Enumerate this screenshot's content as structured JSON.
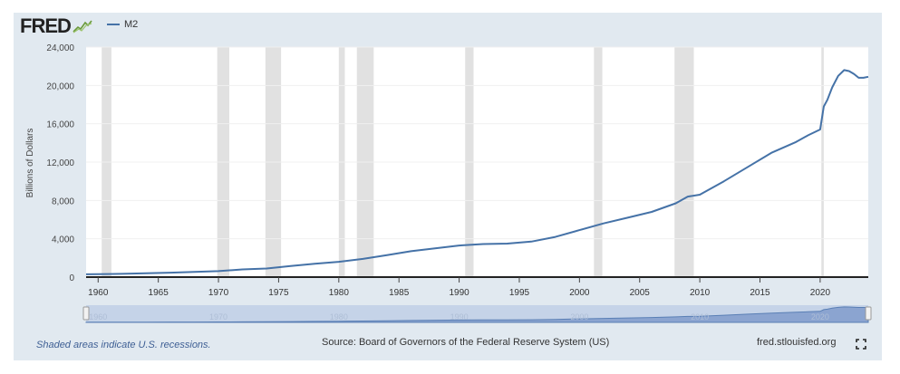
{
  "brand": {
    "name": "FRED"
  },
  "legend": {
    "series_label": "M2"
  },
  "footer": {
    "recession_note": "Shaded areas indicate U.S. recessions.",
    "source": "Source: Board of Governors of the Federal Reserve System (US)",
    "site": "fred.stlouisfed.org"
  },
  "colors": {
    "line": "#4572a7",
    "recession": "#e1e1e1",
    "frame": "#e1e9f0",
    "navigator_fill": "#8ba4d0"
  },
  "navigator_labels": [
    "1960",
    "1970",
    "1980",
    "1990",
    "2000",
    "2010",
    "2020"
  ],
  "chart_data": {
    "type": "line",
    "title": "",
    "ylabel": "Billions of Dollars",
    "xlabel": "",
    "xlim": [
      1959,
      2024
    ],
    "ylim": [
      0,
      24000
    ],
    "yticks": [
      0,
      4000,
      8000,
      12000,
      16000,
      20000,
      24000
    ],
    "ytick_labels": [
      "0",
      "4,000",
      "8,000",
      "12,000",
      "16,000",
      "20,000",
      "24,000"
    ],
    "xticks": [
      1960,
      1965,
      1970,
      1975,
      1980,
      1985,
      1990,
      1995,
      2000,
      2005,
      2010,
      2015,
      2020
    ],
    "xtick_labels": [
      "1960",
      "1965",
      "1970",
      "1975",
      "1980",
      "1985",
      "1990",
      "1995",
      "2000",
      "2005",
      "2010",
      "2015",
      "2020"
    ],
    "recessions": [
      [
        1960.3,
        1961.1
      ],
      [
        1969.9,
        1970.9
      ],
      [
        1973.9,
        1975.2
      ],
      [
        1980.0,
        1980.5
      ],
      [
        1981.5,
        1982.9
      ],
      [
        1990.5,
        1991.2
      ],
      [
        2001.2,
        2001.9
      ],
      [
        2007.9,
        2009.5
      ],
      [
        2020.1,
        2020.3
      ]
    ],
    "series": [
      {
        "name": "M2",
        "x": [
          1959,
          1960,
          1962,
          1964,
          1966,
          1968,
          1970,
          1972,
          1974,
          1976,
          1978,
          1980,
          1982,
          1984,
          1986,
          1988,
          1990,
          1992,
          1994,
          1996,
          1998,
          2000,
          2002,
          2004,
          2006,
          2008,
          2009,
          2010,
          2012,
          2014,
          2016,
          2018,
          2019,
          2020.0,
          2020.3,
          2020.6,
          2021.0,
          2021.5,
          2022.0,
          2022.4,
          2022.8,
          2023.2,
          2023.6,
          2024.0
        ],
        "values": [
          290,
          300,
          340,
          400,
          460,
          550,
          620,
          800,
          900,
          1150,
          1400,
          1600,
          1900,
          2300,
          2700,
          3000,
          3300,
          3450,
          3500,
          3700,
          4200,
          4900,
          5600,
          6200,
          6800,
          7700,
          8400,
          8600,
          10000,
          11500,
          13000,
          14100,
          14800,
          15400,
          17800,
          18500,
          19800,
          21000,
          21600,
          21500,
          21200,
          20800,
          20800,
          20900
        ]
      }
    ]
  }
}
